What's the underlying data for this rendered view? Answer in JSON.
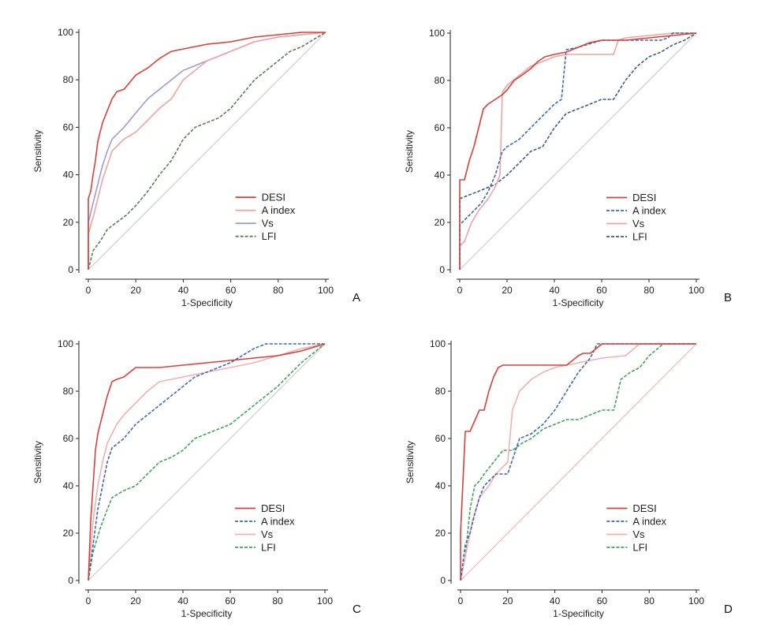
{
  "figure": {
    "panel_labels": [
      "A",
      "B",
      "C",
      "D"
    ]
  },
  "chart_data": [
    {
      "type": "line",
      "panel": "A",
      "xlabel": "1-Specificity",
      "ylabel": "Sensitivity",
      "xlim": [
        0,
        100
      ],
      "ylim": [
        0,
        100
      ],
      "xticks": [
        0,
        20,
        40,
        60,
        80,
        100
      ],
      "yticks": [
        0,
        20,
        40,
        60,
        80,
        100
      ],
      "grid": false,
      "legend_position": "bottom-right",
      "series": [
        {
          "name": "DESI",
          "color": "#d9403a",
          "dash": "solid",
          "x": [
            0,
            0,
            1,
            2,
            3,
            4,
            5,
            6,
            8,
            10,
            12,
            15,
            20,
            25,
            30,
            35,
            40,
            50,
            60,
            70,
            80,
            90,
            100
          ],
          "y": [
            0,
            30,
            33,
            40,
            46,
            54,
            58,
            62,
            67,
            72,
            75,
            76,
            82,
            85,
            89,
            92,
            93,
            95,
            96,
            98,
            99,
            100,
            100
          ]
        },
        {
          "name": "A index",
          "color": "#f0a3a3",
          "dash": "solid",
          "x": [
            0,
            0,
            2,
            4,
            6,
            8,
            10,
            15,
            20,
            25,
            30,
            35,
            40,
            50,
            60,
            70,
            80,
            90,
            100
          ],
          "y": [
            0,
            15,
            22,
            30,
            38,
            44,
            50,
            55,
            58,
            63,
            68,
            72,
            80,
            88,
            92,
            96,
            98,
            99,
            100
          ]
        },
        {
          "name": "Vs",
          "color": "#9a9cd2",
          "dash": "solid",
          "x": [
            0,
            0,
            2,
            4,
            6,
            8,
            10,
            15,
            20,
            25,
            30,
            35,
            40,
            50,
            60,
            70,
            80,
            90,
            100
          ],
          "y": [
            0,
            20,
            28,
            36,
            44,
            50,
            55,
            60,
            66,
            72,
            76,
            80,
            84,
            88,
            92,
            96,
            98,
            99,
            100
          ]
        },
        {
          "name": "LFI",
          "color": "#5b7c5e",
          "dash": "dashed",
          "x": [
            0,
            2,
            5,
            8,
            12,
            16,
            20,
            25,
            30,
            35,
            40,
            45,
            50,
            55,
            60,
            65,
            70,
            75,
            80,
            85,
            90,
            95,
            100
          ],
          "y": [
            0,
            8,
            12,
            17,
            20,
            23,
            27,
            33,
            40,
            46,
            55,
            60,
            62,
            64,
            68,
            74,
            80,
            84,
            88,
            92,
            94,
            97,
            100
          ]
        },
        {
          "name": "",
          "color": "#c9c9c9",
          "dash": "solid",
          "x": [
            0,
            100
          ],
          "y": [
            0,
            100
          ]
        }
      ]
    },
    {
      "type": "line",
      "panel": "B",
      "xlabel": "1-Specificity",
      "ylabel": "Sensitivity",
      "xlim": [
        0,
        100
      ],
      "ylim": [
        0,
        100
      ],
      "xticks": [
        0,
        20,
        40,
        60,
        80,
        100
      ],
      "yticks": [
        0,
        20,
        40,
        60,
        80,
        100
      ],
      "grid": false,
      "legend_position": "bottom-right",
      "series": [
        {
          "name": "DESI",
          "color": "#d9403a",
          "dash": "solid",
          "x": [
            0,
            0,
            2,
            4,
            6,
            8,
            10,
            12,
            15,
            18,
            20,
            23,
            26,
            30,
            33,
            36,
            40,
            45,
            50,
            55,
            60,
            70,
            80,
            90,
            100
          ],
          "y": [
            0,
            38,
            38,
            46,
            52,
            60,
            68,
            70,
            72,
            74,
            76,
            80,
            82,
            85,
            88,
            90,
            91,
            92,
            94,
            96,
            97,
            97,
            98,
            99,
            100
          ]
        },
        {
          "name": "A index",
          "color": "#3c67b8",
          "dash": "dashed",
          "x": [
            0,
            0,
            3,
            6,
            9,
            12,
            15,
            18,
            20,
            25,
            30,
            35,
            40,
            43,
            45,
            50,
            60,
            70,
            80,
            85,
            88,
            90,
            95,
            100
          ],
          "y": [
            0,
            19,
            22,
            25,
            28,
            33,
            40,
            50,
            52,
            55,
            60,
            65,
            70,
            72,
            93,
            94,
            97,
            97,
            97,
            97,
            98,
            100,
            100,
            100
          ]
        },
        {
          "name": "Vs",
          "color": "#f0a3a3",
          "dash": "solid",
          "x": [
            0,
            0,
            2,
            5,
            8,
            12,
            15,
            17,
            18,
            20,
            25,
            30,
            35,
            40,
            45,
            55,
            65,
            67,
            70,
            80,
            90,
            100
          ],
          "y": [
            0,
            10,
            12,
            20,
            25,
            30,
            35,
            40,
            75,
            78,
            82,
            86,
            88,
            90,
            91,
            91,
            91,
            97,
            98,
            99,
            100,
            100
          ]
        },
        {
          "name": "LFI",
          "color": "#3a5f78",
          "dash": "dashed",
          "x": [
            0,
            0,
            5,
            10,
            15,
            20,
            25,
            30,
            35,
            40,
            45,
            50,
            55,
            60,
            65,
            70,
            75,
            80,
            85,
            90,
            95,
            100
          ],
          "y": [
            0,
            30,
            32,
            34,
            36,
            40,
            45,
            50,
            52,
            60,
            66,
            68,
            70,
            72,
            72,
            80,
            86,
            90,
            92,
            95,
            97,
            100
          ]
        },
        {
          "name": "",
          "color": "#c9c9c9",
          "dash": "solid",
          "x": [
            0,
            100
          ],
          "y": [
            0,
            100
          ]
        }
      ]
    },
    {
      "type": "line",
      "panel": "C",
      "xlabel": "1-Specificity",
      "ylabel": "Sensitivity",
      "xlim": [
        0,
        100
      ],
      "ylim": [
        0,
        100
      ],
      "xticks": [
        0,
        20,
        40,
        60,
        80,
        100
      ],
      "yticks": [
        0,
        20,
        40,
        60,
        80,
        100
      ],
      "grid": false,
      "legend_position": "bottom-right",
      "series": [
        {
          "name": "DESI",
          "color": "#d9403a",
          "dash": "solid",
          "x": [
            0,
            1,
            2,
            3,
            4,
            6,
            8,
            10,
            12,
            15,
            20,
            25,
            30,
            40,
            50,
            60,
            70,
            80,
            90,
            100
          ],
          "y": [
            0,
            25,
            40,
            55,
            62,
            70,
            78,
            84,
            85,
            86,
            90,
            90,
            90,
            91,
            92,
            93,
            94,
            95,
            97,
            100
          ]
        },
        {
          "name": "A index",
          "color": "#3c67b8",
          "dash": "dashed",
          "x": [
            0,
            2,
            4,
            6,
            8,
            10,
            15,
            20,
            25,
            30,
            35,
            40,
            45,
            50,
            55,
            60,
            65,
            70,
            75,
            80,
            90,
            100
          ],
          "y": [
            0,
            15,
            30,
            40,
            50,
            56,
            60,
            66,
            70,
            74,
            78,
            82,
            86,
            88,
            90,
            92,
            95,
            98,
            100,
            100,
            100,
            100
          ]
        },
        {
          "name": "Vs",
          "color": "#f3b0b0",
          "dash": "solid",
          "x": [
            0,
            2,
            4,
            6,
            8,
            10,
            12,
            15,
            20,
            25,
            30,
            40,
            50,
            60,
            70,
            80,
            90,
            100
          ],
          "y": [
            0,
            25,
            40,
            50,
            58,
            62,
            66,
            70,
            75,
            80,
            84,
            86,
            88,
            90,
            92,
            95,
            98,
            100
          ]
        },
        {
          "name": "LFI",
          "color": "#3fa35a",
          "dash": "dashed",
          "x": [
            0,
            2,
            5,
            8,
            10,
            15,
            20,
            25,
            30,
            35,
            40,
            45,
            50,
            55,
            60,
            65,
            70,
            75,
            80,
            85,
            90,
            95,
            100
          ],
          "y": [
            0,
            12,
            22,
            30,
            35,
            38,
            40,
            45,
            50,
            52,
            55,
            60,
            62,
            64,
            66,
            70,
            74,
            78,
            82,
            87,
            92,
            96,
            100
          ]
        },
        {
          "name": "",
          "color": "#c9c9c9",
          "dash": "solid",
          "x": [
            0,
            100
          ],
          "y": [
            0,
            100
          ]
        }
      ]
    },
    {
      "type": "line",
      "panel": "D",
      "xlabel": "1-Specificity",
      "ylabel": "Sensitivity",
      "xlim": [
        0,
        100
      ],
      "ylim": [
        0,
        100
      ],
      "xticks": [
        0,
        20,
        40,
        60,
        80,
        100
      ],
      "yticks": [
        0,
        20,
        40,
        60,
        80,
        100
      ],
      "grid": false,
      "legend_position": "bottom-right",
      "series": [
        {
          "name": "DESI",
          "color": "#d9403a",
          "dash": "solid",
          "x": [
            0,
            0,
            2,
            4,
            8,
            10,
            12,
            14,
            16,
            18,
            20,
            25,
            30,
            35,
            40,
            45,
            50,
            52,
            55,
            60,
            70,
            80,
            90,
            100
          ],
          "y": [
            0,
            20,
            63,
            63,
            72,
            72,
            80,
            86,
            90,
            91,
            91,
            91,
            91,
            91,
            91,
            91,
            95,
            96,
            96,
            100,
            100,
            100,
            100,
            100
          ]
        },
        {
          "name": "A index",
          "color": "#3c67b8",
          "dash": "dashed",
          "x": [
            0,
            2,
            4,
            6,
            8,
            10,
            12,
            15,
            18,
            20,
            25,
            30,
            35,
            40,
            45,
            50,
            55,
            58,
            60,
            70,
            80,
            90,
            100
          ],
          "y": [
            0,
            15,
            20,
            28,
            35,
            40,
            42,
            45,
            45,
            45,
            60,
            62,
            66,
            72,
            80,
            88,
            94,
            100,
            100,
            100,
            100,
            100,
            100
          ]
        },
        {
          "name": "Vs",
          "color": "#f3b0b0",
          "dash": "solid",
          "x": [
            0,
            2,
            5,
            8,
            12,
            15,
            20,
            22,
            25,
            30,
            35,
            40,
            50,
            60,
            70,
            76,
            80,
            90,
            100
          ],
          "y": [
            0,
            10,
            25,
            35,
            40,
            45,
            50,
            72,
            80,
            85,
            88,
            90,
            92,
            94,
            95,
            100,
            100,
            100,
            100
          ]
        },
        {
          "name": "LFI",
          "color": "#3fa35a",
          "dash": "dashed",
          "x": [
            0,
            2,
            4,
            6,
            8,
            10,
            14,
            18,
            22,
            26,
            30,
            35,
            40,
            45,
            50,
            55,
            60,
            65,
            68,
            72,
            76,
            80,
            86,
            90,
            100
          ],
          "y": [
            0,
            10,
            30,
            40,
            42,
            45,
            50,
            55,
            55,
            58,
            60,
            64,
            66,
            68,
            68,
            70,
            72,
            72,
            85,
            88,
            90,
            95,
            100,
            100,
            100
          ]
        },
        {
          "name": "",
          "color": "#f3b0b0",
          "dash": "solid",
          "x": [
            0,
            100
          ],
          "y": [
            0,
            100
          ]
        }
      ]
    }
  ]
}
